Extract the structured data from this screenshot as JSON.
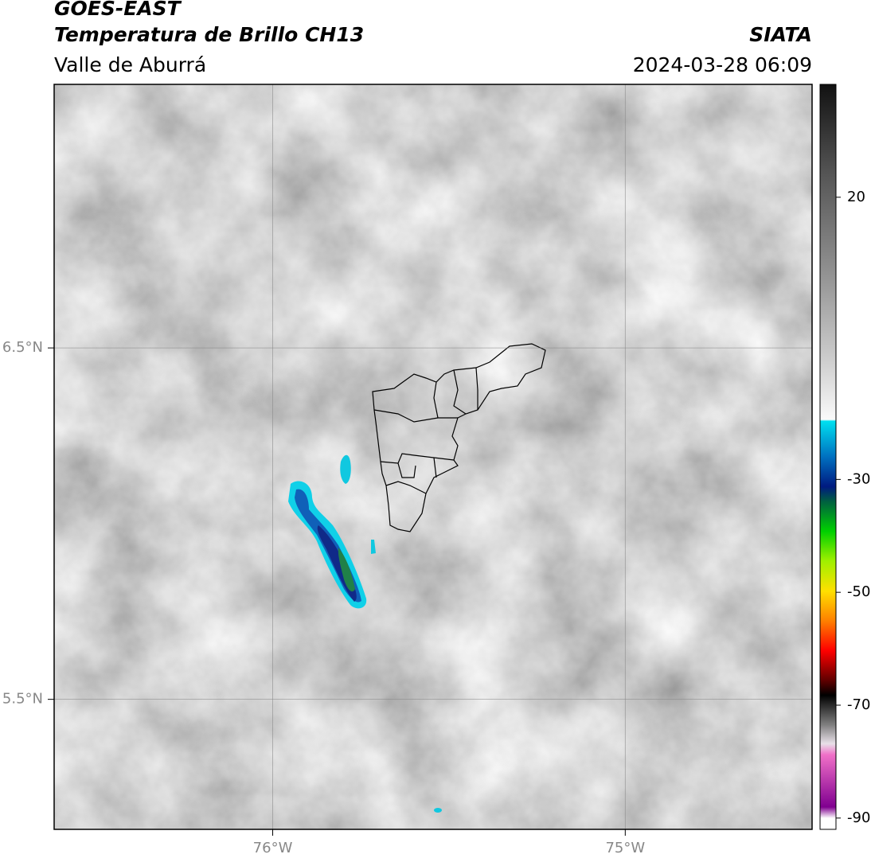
{
  "header": {
    "title_line1": "GOES-EAST",
    "title_line2": "Temperatura de Brillo CH13",
    "subtitle": "Valle de Aburrá",
    "source": "SIATA",
    "datetime": "2024-03-28 06:09"
  },
  "map": {
    "lon_lim": [
      -76.62,
      -74.47
    ],
    "lat_lim": [
      5.13,
      7.25
    ],
    "lat_ticks": [
      {
        "value": 6.5,
        "label": "6.5°N"
      },
      {
        "value": 5.5,
        "label": "5.5°N"
      }
    ],
    "lon_ticks": [
      {
        "value": -76,
        "label": "76°W"
      },
      {
        "value": -75,
        "label": "75°W"
      }
    ]
  },
  "colorbar": {
    "lim": [
      -92,
      40
    ],
    "ticks": [
      20,
      -30,
      -50,
      -70,
      -90
    ]
  }
}
